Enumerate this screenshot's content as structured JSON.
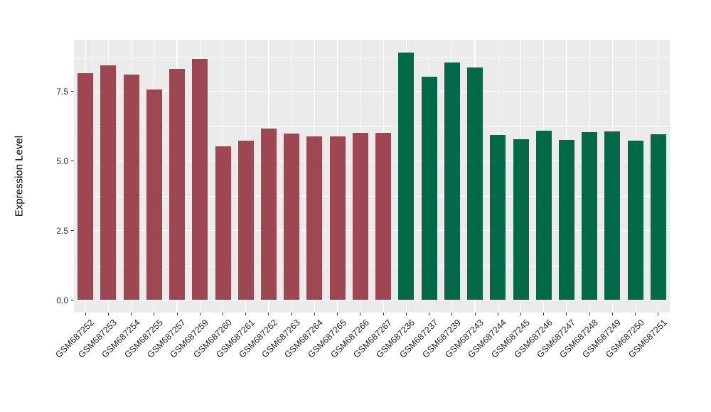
{
  "chart_data": {
    "type": "bar",
    "title": "",
    "xlabel": "",
    "ylabel": "Expression Level",
    "ylim": [
      -0.45,
      9.35
    ],
    "yticks": [
      0.0,
      2.5,
      5.0,
      7.5
    ],
    "ytick_labels": [
      "0.0",
      "2.5",
      "5.0",
      "7.5"
    ],
    "minor_gridlines_y": [
      1.25,
      3.75,
      6.25,
      8.75
    ],
    "grid": "on",
    "legend_position": "none",
    "panel_background": "#EBEBEB",
    "gridline_color": "#FFFFFF",
    "categories": [
      "GSM687252",
      "GSM687253",
      "GSM687254",
      "GSM687255",
      "GSM687257",
      "GSM687259",
      "GSM687260",
      "GSM687261",
      "GSM687262",
      "GSM687263",
      "GSM687264",
      "GSM687265",
      "GSM687266",
      "GSM687267",
      "GSM687236",
      "GSM687237",
      "GSM687239",
      "GSM687243",
      "GSM687244",
      "GSM687245",
      "GSM687246",
      "GSM687247",
      "GSM687248",
      "GSM687249",
      "GSM687250",
      "GSM687251"
    ],
    "values": [
      8.15,
      8.43,
      8.11,
      7.56,
      8.3,
      8.67,
      5.53,
      5.73,
      6.15,
      5.99,
      5.88,
      5.88,
      6.02,
      6.01,
      8.9,
      8.02,
      8.53,
      8.35,
      5.94,
      5.78,
      6.08,
      5.75,
      6.03,
      6.05,
      5.73,
      5.96
    ],
    "bar_colors": [
      "#9E4652",
      "#9E4652",
      "#9E4652",
      "#9E4652",
      "#9E4652",
      "#9E4652",
      "#9E4652",
      "#9E4652",
      "#9E4652",
      "#9E4652",
      "#9E4652",
      "#9E4652",
      "#9E4652",
      "#9E4652",
      "#036A49",
      "#036A49",
      "#036A49",
      "#036A49",
      "#036A49",
      "#036A49",
      "#036A49",
      "#036A49",
      "#036A49",
      "#036A49",
      "#036A49",
      "#036A49"
    ],
    "group_colors": {
      "left_group": "#9E4652",
      "right_group": "#036A49"
    }
  }
}
